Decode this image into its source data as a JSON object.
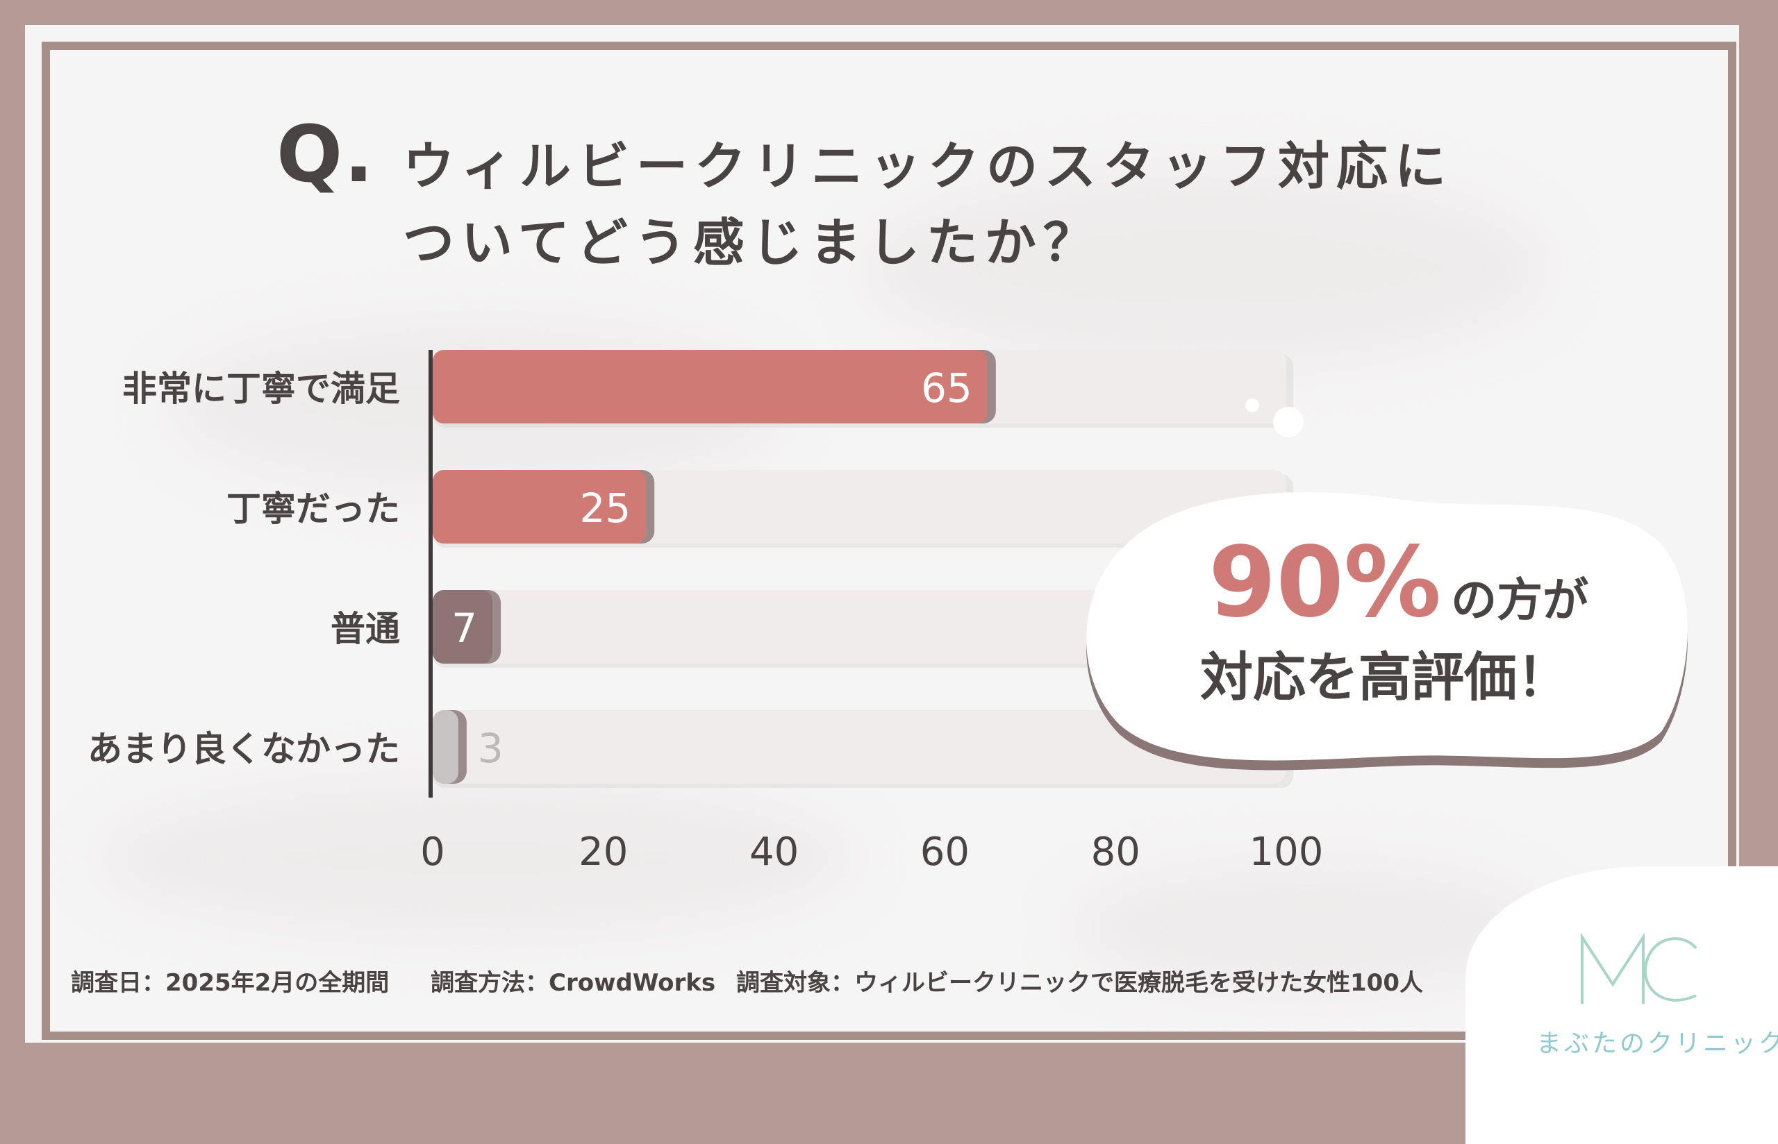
{
  "title": {
    "q": "Q.",
    "line1": "ウィルビークリニックのスタッフ対応に",
    "line2": "ついてどう感じましたか？"
  },
  "chart_data": {
    "type": "bar",
    "orientation": "horizontal",
    "categories": [
      "非常に丁寧で満足",
      "丁寧だった",
      "普通",
      "あまり良くなかった"
    ],
    "values": [
      65,
      25,
      7,
      3
    ],
    "xlim": [
      0,
      100
    ],
    "xticks": [
      "0",
      "20",
      "40",
      "60",
      "80",
      "100"
    ],
    "colors": [
      "#d07a76",
      "#d07a76",
      "#8d7472",
      "#c8c4c4"
    ],
    "value_label_colors": [
      "#ffffff",
      "#ffffff",
      "#ffffff",
      "#bdb8b8"
    ],
    "track_color": "#efeceb"
  },
  "callout": {
    "percent": "90%",
    "suffix": "の方が",
    "line2": "対応を高評価！"
  },
  "footer": {
    "date": "調査日：2025年2月の全期間",
    "method": "調査方法：CrowdWorks",
    "target": "調査対象：ウィルビークリニックで医療脱毛を受けた女性100人"
  },
  "logo": {
    "mark": "MC",
    "name": "まぶたのクリニック"
  }
}
